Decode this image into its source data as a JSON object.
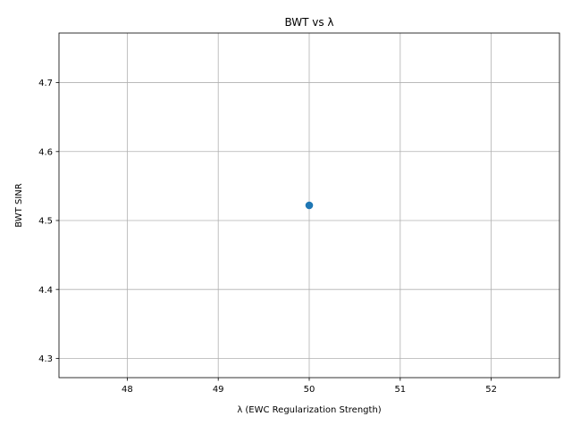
{
  "chart_data": {
    "type": "scatter",
    "title": "BWT vs λ",
    "xlabel": "λ (EWC Regularization Strength)",
    "ylabel": "BWT SINR",
    "xlim": [
      47.25,
      52.75
    ],
    "ylim": [
      4.272,
      4.772
    ],
    "xticks": [
      48,
      49,
      50,
      51,
      52
    ],
    "yticks": [
      4.3,
      4.4,
      4.5,
      4.6,
      4.7
    ],
    "ytick_labels": [
      "4.3",
      "4.4",
      "4.5",
      "4.6",
      "4.7"
    ],
    "grid": true,
    "points": [
      {
        "x": 50,
        "y": 4.522
      }
    ],
    "colors": {
      "marker": "#1f77b4",
      "grid": "#b0b0b0",
      "axis": "#000000"
    }
  }
}
